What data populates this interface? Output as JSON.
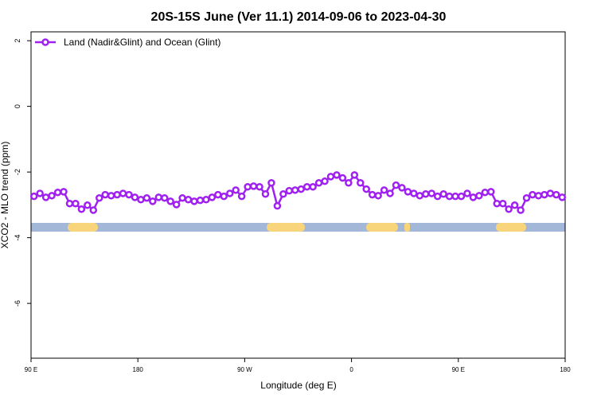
{
  "chart_data": {
    "type": "line",
    "title": "20S-15S June (Ver 11.1)   2014-09-06 to 2023-04-30",
    "x_label": "Longitude (deg E)",
    "y_label": "XCO2 - MLO trend (ppm)",
    "x": [
      92.5,
      97.5,
      102.5,
      107.5,
      112.5,
      117.5,
      122.5,
      127.5,
      132.5,
      137.5,
      142.5,
      147.5,
      152.5,
      157.5,
      162.5,
      167.5,
      172.5,
      177.5,
      182.5,
      187.5,
      192.5,
      197.5,
      202.5,
      207.5,
      212.5,
      217.5,
      222.5,
      227.5,
      232.5,
      237.5,
      242.5,
      247.5,
      252.5,
      257.5,
      262.5,
      267.5,
      272.5,
      277.5,
      282.5,
      287.5,
      292.5,
      297.5,
      302.5,
      307.5,
      312.5,
      317.5,
      322.5,
      327.5,
      332.5,
      337.5,
      342.5,
      347.5,
      352.5,
      357.5,
      362.5,
      367.5,
      372.5,
      377.5,
      382.5,
      387.5,
      392.5,
      397.5,
      402.5,
      407.5,
      412.5,
      417.5,
      422.5,
      427.5,
      432.5,
      437.5,
      442.5,
      447.5,
      452.5,
      457.5,
      462.5,
      467.5,
      472.5,
      477.5,
      482.5,
      487.5,
      492.5,
      497.5,
      502.5,
      507.5,
      512.5,
      517.5,
      522.5,
      527.5,
      532.5,
      537.5
    ],
    "series": [
      {
        "name": "Land (Nadir&Glint) and Ocean (Glint)",
        "color": "#a020f0",
        "values": [
          -2.74,
          -2.65,
          -2.77,
          -2.72,
          -2.62,
          -2.6,
          -2.96,
          -2.96,
          -3.13,
          -3.01,
          -3.16,
          -2.79,
          -2.69,
          -2.72,
          -2.69,
          -2.65,
          -2.69,
          -2.77,
          -2.84,
          -2.79,
          -2.89,
          -2.77,
          -2.79,
          -2.89,
          -2.99,
          -2.79,
          -2.84,
          -2.89,
          -2.86,
          -2.84,
          -2.77,
          -2.69,
          -2.74,
          -2.65,
          -2.55,
          -2.74,
          -2.45,
          -2.43,
          -2.45,
          -2.67,
          -2.33,
          -3.03,
          -2.67,
          -2.57,
          -2.55,
          -2.52,
          -2.45,
          -2.45,
          -2.33,
          -2.28,
          -2.14,
          -2.09,
          -2.18,
          -2.33,
          -2.09,
          -2.33,
          -2.52,
          -2.69,
          -2.72,
          -2.55,
          -2.65,
          -2.4,
          -2.48,
          -2.6,
          -2.65,
          -2.72,
          -2.67,
          -2.65,
          -2.74,
          -2.67,
          -2.74,
          -2.74,
          -2.74,
          -2.65,
          -2.77,
          -2.72,
          -2.62,
          -2.6,
          -2.96,
          -2.96,
          -3.13,
          -3.01,
          -3.16,
          -2.79,
          -2.69,
          -2.72,
          -2.69,
          -2.65,
          -2.69,
          -2.77
        ]
      }
    ],
    "xlim": [
      90,
      540
    ],
    "xticks": [
      {
        "value": 90,
        "label": "90 E"
      },
      180,
      {
        "value": 270,
        "label": "90 W"
      },
      {
        "value": 360,
        "label": "0"
      },
      {
        "value": 450,
        "label": "90 E"
      },
      {
        "value": 540,
        "label": "180"
      }
    ],
    "ylim": [
      -7.67,
      2.27
    ],
    "yticks": [
      2,
      0,
      -2,
      -4,
      -6
    ],
    "legend": "top-left"
  }
}
